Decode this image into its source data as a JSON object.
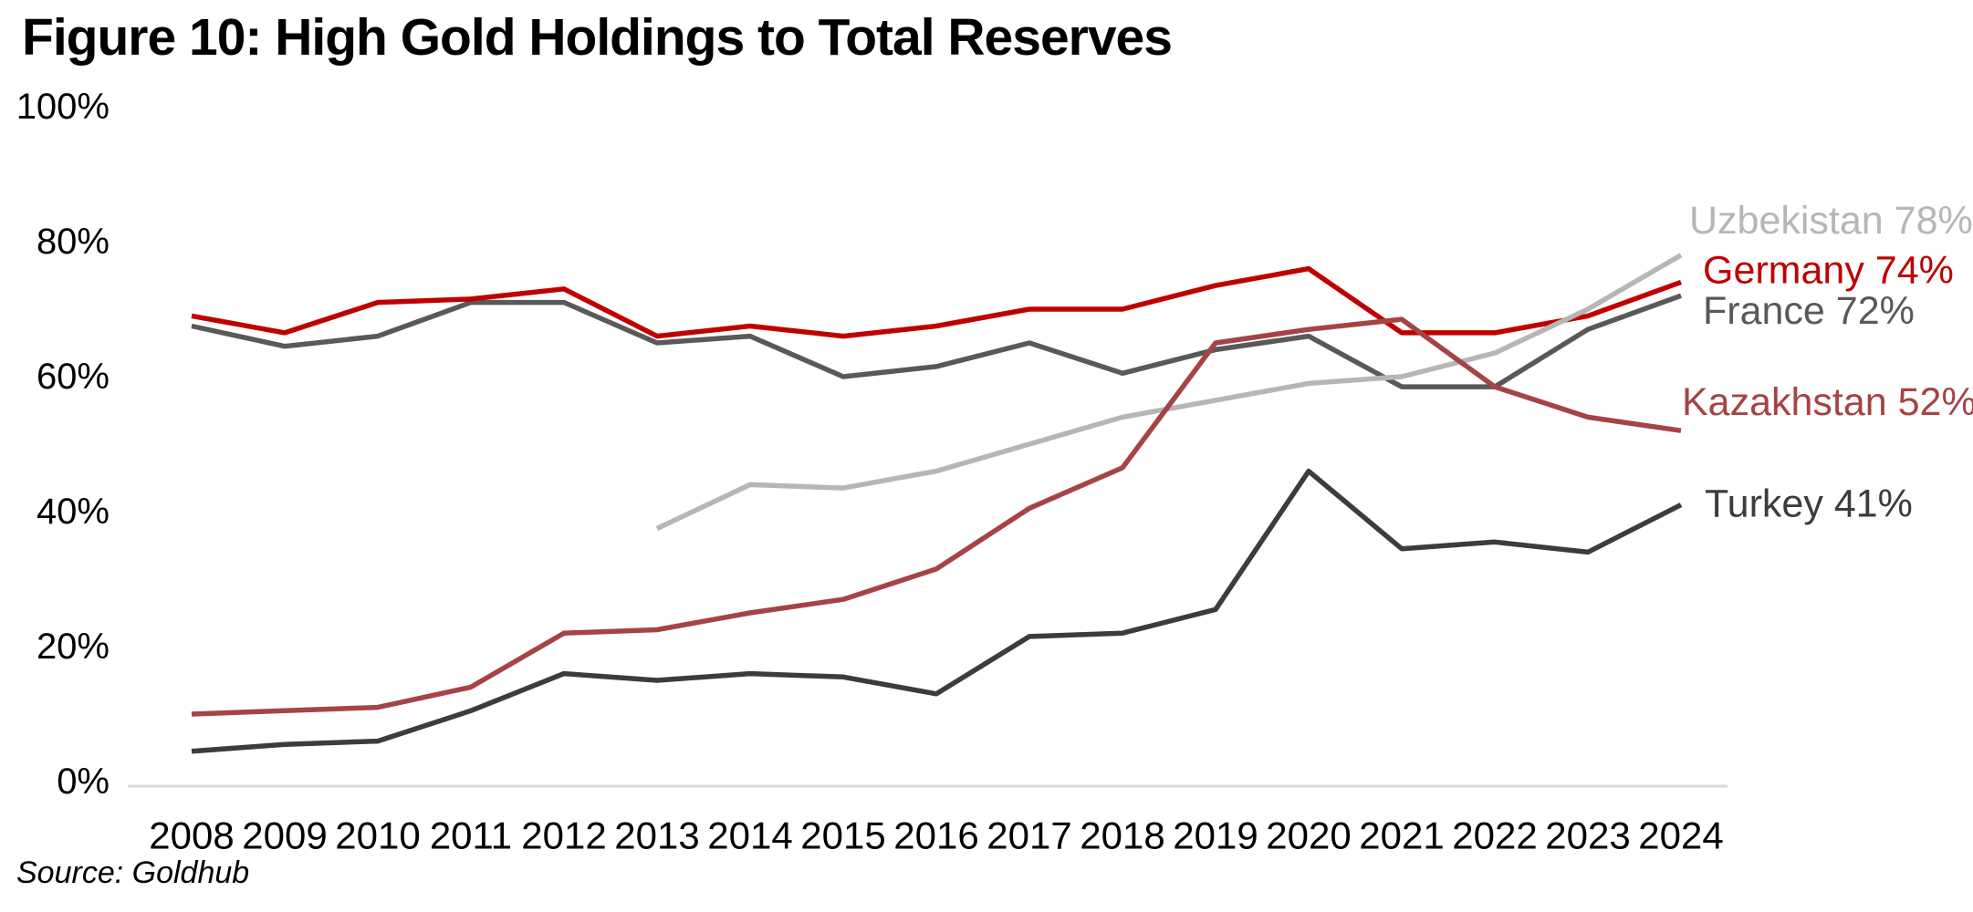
{
  "title": "Figure 10: High Gold Holdings to Total Reserves",
  "source": "Source: Goldhub",
  "chart_data": {
    "type": "line",
    "title": "Figure 10: High Gold Holdings to Total Reserves",
    "source": "Source: Goldhub",
    "x": [
      2008,
      2009,
      2010,
      2011,
      2012,
      2013,
      2014,
      2015,
      2016,
      2017,
      2018,
      2019,
      2020,
      2021,
      2022,
      2023,
      2024
    ],
    "ylim": [
      0,
      100
    ],
    "y_tick_values": [
      0,
      20,
      40,
      60,
      80,
      100
    ],
    "y_tick_labels": [
      "0%",
      "20%",
      "40%",
      "60%",
      "80%",
      "100%"
    ],
    "grid": false,
    "legend_position": "right-end-labels",
    "axis_line_color": "#D9D9D9",
    "series": [
      {
        "name": "France",
        "end_label": "France 72%",
        "color": "#595959",
        "values": [
          67.5,
          64.5,
          66,
          71,
          71,
          65,
          66,
          60,
          61.5,
          65,
          60.5,
          64,
          66,
          58.5,
          58.5,
          67,
          72
        ]
      },
      {
        "name": "Germany",
        "end_label": "Germany 74%",
        "color": "#C00000",
        "values": [
          69,
          66.5,
          71,
          71.5,
          73,
          66,
          67.5,
          66,
          67.5,
          70,
          70,
          73.5,
          76,
          66.5,
          66.5,
          69,
          74
        ]
      },
      {
        "name": "Turkey",
        "end_label": "Turkey 41%",
        "color": "#3C3C3E",
        "values": [
          4.5,
          5.5,
          6,
          10.5,
          16,
          15,
          16,
          15.5,
          13,
          21.5,
          22,
          25.5,
          46,
          34.5,
          35.5,
          34,
          41
        ]
      },
      {
        "name": "Uzbekistan",
        "end_label": "Uzbekistan 78%",
        "color": "#B8B5B5",
        "values": [
          null,
          null,
          null,
          null,
          null,
          37.5,
          44,
          43.5,
          46,
          50,
          54,
          56.5,
          59,
          60,
          63.5,
          70,
          78
        ]
      },
      {
        "name": "Kazakhstan",
        "end_label": "Kazakhstan 52%",
        "color": "#A64345",
        "values": [
          10,
          10.5,
          11,
          14,
          22,
          22.5,
          25,
          27,
          31.5,
          40.5,
          46.5,
          65,
          67,
          68.5,
          58.5,
          54,
          52
        ]
      }
    ]
  }
}
